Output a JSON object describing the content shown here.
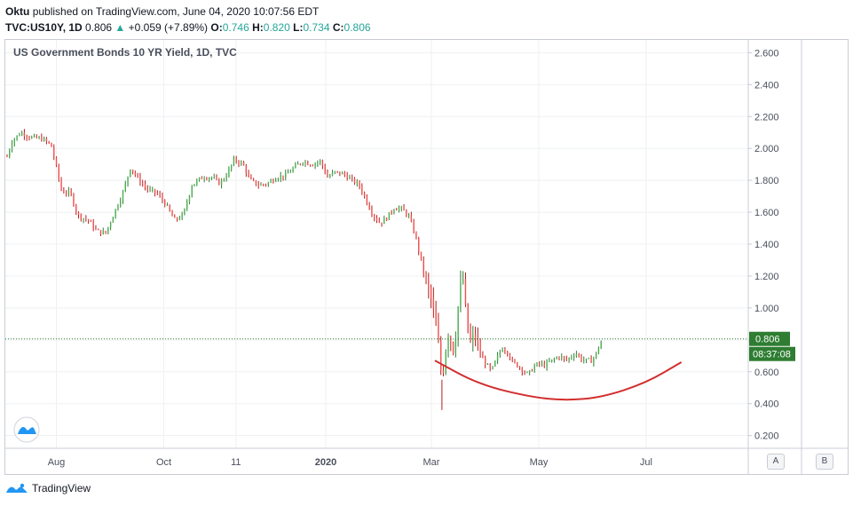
{
  "header": {
    "publisher": "Oktu",
    "published_text": "published on TradingView.com, June 04, 2020 10:07:56 EDT",
    "symbol": "TVC:US10Y, 1D",
    "last": "0.806",
    "change_arrow": "▲",
    "change": "+0.059 (+7.89%)",
    "o_label": "O:",
    "o_value": "0.746",
    "h_label": "H:",
    "h_value": "0.820",
    "l_label": "L:",
    "l_value": "0.734",
    "c_label": "C:",
    "c_value": "0.806"
  },
  "footer": {
    "brand": "TradingView"
  },
  "buttons": {
    "a": "A",
    "b": "B"
  },
  "colors": {
    "up": "#26a69a",
    "down": "#ef5350",
    "up_body": "#4caf50",
    "curve": "#d32f2f",
    "price_line": "#2e7d32"
  },
  "chart_data": {
    "type": "candlestick",
    "title": "US Government Bonds 10 YR Yield, 1D, TVC",
    "ylim": [
      0.12,
      2.68
    ],
    "y_ticks": [
      "2.600",
      "2.400",
      "2.200",
      "2.000",
      "1.800",
      "1.600",
      "1.400",
      "1.200",
      "1.000",
      "0.800",
      "0.600",
      "0.400",
      "0.200"
    ],
    "x_ticks": [
      {
        "label": "Aug",
        "day": 0
      },
      {
        "label": "Oct",
        "day": 61
      },
      {
        "label": "11",
        "day": 102
      },
      {
        "label": "2020",
        "day": 153
      },
      {
        "label": "Mar",
        "day": 213
      },
      {
        "label": "May",
        "day": 274
      },
      {
        "label": "Jul",
        "day": 335
      }
    ],
    "x_day_range": [
      -29,
      393
    ],
    "last_price_label": "0.806",
    "countdown_label": "08:37:08",
    "last_price": 0.806,
    "close_series": [
      {
        "day": -28,
        "close": 1.95
      },
      {
        "day": -25,
        "close": 2.05
      },
      {
        "day": -20,
        "close": 2.1
      },
      {
        "day": -15,
        "close": 2.07
      },
      {
        "day": -8,
        "close": 2.06
      },
      {
        "day": -3,
        "close": 2.02
      },
      {
        "day": 0,
        "close": 1.88
      },
      {
        "day": 3,
        "close": 1.73
      },
      {
        "day": 8,
        "close": 1.72
      },
      {
        "day": 12,
        "close": 1.58
      },
      {
        "day": 18,
        "close": 1.55
      },
      {
        "day": 23,
        "close": 1.48
      },
      {
        "day": 28,
        "close": 1.47
      },
      {
        "day": 33,
        "close": 1.6
      },
      {
        "day": 38,
        "close": 1.73
      },
      {
        "day": 42,
        "close": 1.88
      },
      {
        "day": 47,
        "close": 1.8
      },
      {
        "day": 52,
        "close": 1.74
      },
      {
        "day": 57,
        "close": 1.72
      },
      {
        "day": 62,
        "close": 1.65
      },
      {
        "day": 67,
        "close": 1.55
      },
      {
        "day": 72,
        "close": 1.58
      },
      {
        "day": 77,
        "close": 1.77
      },
      {
        "day": 83,
        "close": 1.82
      },
      {
        "day": 88,
        "close": 1.82
      },
      {
        "day": 93,
        "close": 1.78
      },
      {
        "day": 97,
        "close": 1.84
      },
      {
        "day": 101,
        "close": 1.93
      },
      {
        "day": 106,
        "close": 1.9
      },
      {
        "day": 110,
        "close": 1.8
      },
      {
        "day": 115,
        "close": 1.77
      },
      {
        "day": 120,
        "close": 1.78
      },
      {
        "day": 125,
        "close": 1.82
      },
      {
        "day": 130,
        "close": 1.83
      },
      {
        "day": 135,
        "close": 1.88
      },
      {
        "day": 140,
        "close": 1.92
      },
      {
        "day": 145,
        "close": 1.9
      },
      {
        "day": 150,
        "close": 1.92
      },
      {
        "day": 154,
        "close": 1.82
      },
      {
        "day": 158,
        "close": 1.85
      },
      {
        "day": 163,
        "close": 1.84
      },
      {
        "day": 168,
        "close": 1.8
      },
      {
        "day": 172,
        "close": 1.77
      },
      {
        "day": 177,
        "close": 1.65
      },
      {
        "day": 180,
        "close": 1.58
      },
      {
        "day": 184,
        "close": 1.53
      },
      {
        "day": 188,
        "close": 1.57
      },
      {
        "day": 192,
        "close": 1.63
      },
      {
        "day": 196,
        "close": 1.62
      },
      {
        "day": 200,
        "close": 1.58
      },
      {
        "day": 204,
        "close": 1.45
      },
      {
        "day": 207,
        "close": 1.3
      },
      {
        "day": 210,
        "close": 1.15
      },
      {
        "day": 213,
        "close": 1.05
      },
      {
        "day": 215,
        "close": 0.92
      },
      {
        "day": 217,
        "close": 0.76
      },
      {
        "day": 219,
        "close": 0.55
      },
      {
        "day": 221,
        "close": 0.74
      },
      {
        "day": 223,
        "close": 0.88
      },
      {
        "day": 225,
        "close": 0.72
      },
      {
        "day": 227,
        "close": 0.86
      },
      {
        "day": 229,
        "close": 1.1
      },
      {
        "day": 231,
        "close": 1.18
      },
      {
        "day": 233,
        "close": 0.9
      },
      {
        "day": 235,
        "close": 0.78
      },
      {
        "day": 238,
        "close": 0.82
      },
      {
        "day": 241,
        "close": 0.7
      },
      {
        "day": 244,
        "close": 0.65
      },
      {
        "day": 247,
        "close": 0.6
      },
      {
        "day": 250,
        "close": 0.68
      },
      {
        "day": 253,
        "close": 0.75
      },
      {
        "day": 256,
        "close": 0.73
      },
      {
        "day": 259,
        "close": 0.66
      },
      {
        "day": 262,
        "close": 0.64
      },
      {
        "day": 265,
        "close": 0.61
      },
      {
        "day": 268,
        "close": 0.58
      },
      {
        "day": 271,
        "close": 0.63
      },
      {
        "day": 274,
        "close": 0.65
      },
      {
        "day": 277,
        "close": 0.64
      },
      {
        "day": 280,
        "close": 0.66
      },
      {
        "day": 283,
        "close": 0.68
      },
      {
        "day": 286,
        "close": 0.7
      },
      {
        "day": 289,
        "close": 0.67
      },
      {
        "day": 292,
        "close": 0.69
      },
      {
        "day": 295,
        "close": 0.72
      },
      {
        "day": 298,
        "close": 0.68
      },
      {
        "day": 301,
        "close": 0.67
      },
      {
        "day": 304,
        "close": 0.67
      },
      {
        "day": 306,
        "close": 0.7
      },
      {
        "day": 308,
        "close": 0.75
      },
      {
        "day": 310,
        "close": 0.806
      }
    ],
    "arc_points": [
      {
        "day": 215,
        "value": 0.67
      },
      {
        "day": 240,
        "value": 0.52
      },
      {
        "day": 270,
        "value": 0.44
      },
      {
        "day": 290,
        "value": 0.42
      },
      {
        "day": 310,
        "value": 0.44
      },
      {
        "day": 335,
        "value": 0.53
      },
      {
        "day": 355,
        "value": 0.66
      }
    ]
  }
}
